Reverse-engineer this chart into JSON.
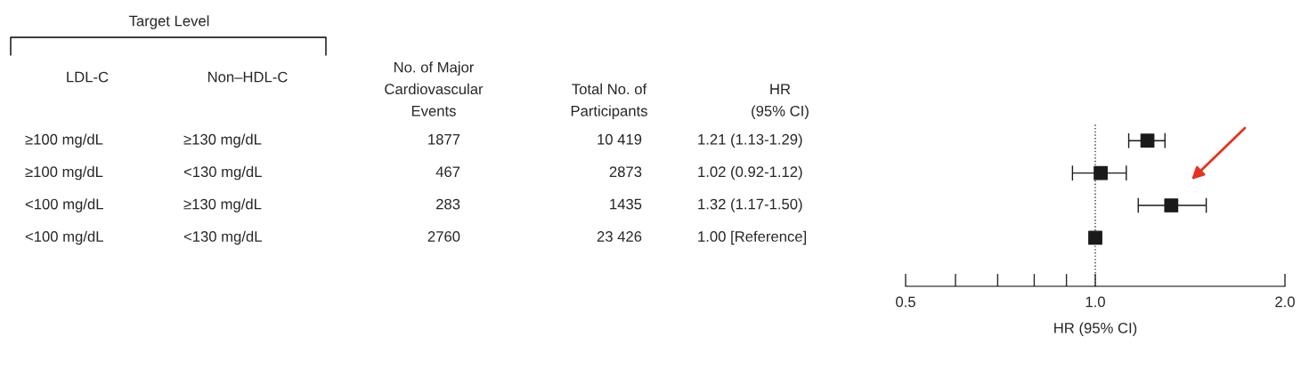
{
  "chart_data": {
    "type": "scatter",
    "orientation": "horizontal",
    "categories": [
      null,
      null,
      null,
      null,
      null
    ],
    "series": [
      {
        "color": "#1a1a1a",
        "values": [
          1.21,
          1.02,
          1.32,
          1.0,
          null
        ],
        "errors": [
          [
            1.13,
            1.29
          ],
          [
            0.92,
            1.12
          ],
          [
            1.17,
            1.5
          ],
          null,
          null
        ]
      }
    ],
    "marker": "square",
    "log": "x",
    "xlim": [
      0.5,
      2.0
    ],
    "xticks": [
      0.5,
      {
        "value": 0.6,
        "label": null
      },
      {
        "value": 0.7,
        "label": null
      },
      {
        "value": 0.8,
        "label": null
      },
      {
        "value": 0.9,
        "label": null
      },
      {
        "value": 1,
        "label": "1.0"
      },
      {
        "value": 2,
        "label": "2.0"
      }
    ],
    "xlabel": "HR (95% CI)",
    "tick_labels": "x",
    "grid": false,
    "ref_lines": [
      {
        "axis": "x",
        "value": 1,
        "line_style": "dotted",
        "color": "#333333"
      }
    ],
    "annotations": [
      "Target Level",
      "LDL-C",
      "Non–HDL-C",
      "No. of Major\nCardiovascular\nEvents",
      "Total No. of\nParticipants",
      "HR\n(95% CI)",
      "≥100 mg/dL",
      "≥130 mg/dL",
      "1877",
      "10 419",
      "1.21 (1.13-1.29)",
      "≥100 mg/dL",
      "<130 mg/dL",
      "467",
      "2873",
      "1.02 (0.92-1.12)",
      "<100 mg/dL",
      "≥130 mg/dL",
      "283",
      "1435",
      "1.32 (1.17-1.50)",
      "<100 mg/dL",
      "<130 mg/dL",
      "2760",
      "23 426",
      "1.00 [Reference]"
    ]
  }
}
